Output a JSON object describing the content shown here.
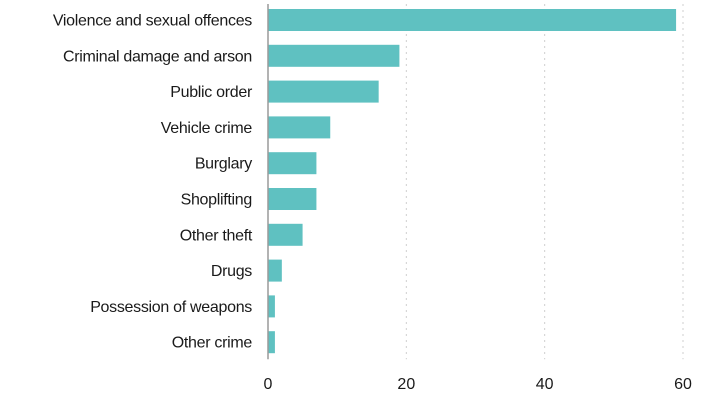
{
  "chart_data": {
    "type": "bar",
    "orientation": "horizontal",
    "categories": [
      "Violence and sexual offences",
      "Criminal damage and arson",
      "Public order",
      "Vehicle crime",
      "Burglary",
      "Shoplifting",
      "Other theft",
      "Drugs",
      "Possession of weapons",
      "Other crime"
    ],
    "values": [
      59,
      19,
      16,
      9,
      7,
      7,
      5,
      2,
      1,
      1
    ],
    "xlim": [
      0,
      60
    ],
    "xticks": [
      "0",
      "20",
      "40",
      "60"
    ],
    "grid": true,
    "bar_color": "#5fc1c1",
    "title": "",
    "xlabel": "",
    "ylabel": ""
  }
}
